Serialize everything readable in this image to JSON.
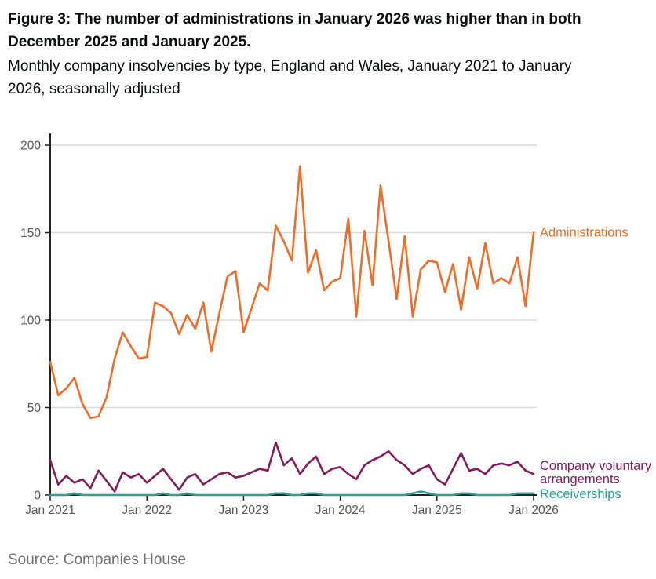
{
  "header": {
    "title_line1": "Figure 3: The number of administrations in January 2026 was higher than in both",
    "title_line2": "December 2025 and January 2025.",
    "subtitle_line1": "Monthly company insolvencies by type, England and Wales, January 2021 to January",
    "subtitle_line2": "2026, seasonally adjusted"
  },
  "footer": {
    "source": "Source: Companies House"
  },
  "chart_data": {
    "type": "line",
    "title": "Monthly company insolvencies by type, England and Wales, January 2021 to January 2026, seasonally adjusted",
    "x_start": "Jan 2021",
    "x_end": "Jan 2026",
    "x_tick_labels": [
      "Jan 2021",
      "Jan 2022",
      "Jan 2023",
      "Jan 2024",
      "Jan 2025",
      "Jan 2026"
    ],
    "x_tick_month_index": [
      0,
      12,
      24,
      36,
      48,
      60
    ],
    "y_ticks": [
      0,
      50,
      100,
      150,
      200
    ],
    "ylim": [
      0,
      204
    ],
    "grid": "horizontal",
    "legend_position": "right-of-line-end",
    "axis_color": "#222222",
    "grid_color": "#d9d9d9",
    "tick_label_color": "#575756",
    "series": [
      {
        "name": "Administrations",
        "label_lines": [
          "Administrations"
        ],
        "color": "#f46a25",
        "values": [
          76,
          57,
          61,
          67,
          52,
          44,
          45,
          56,
          78,
          93,
          85,
          78,
          79,
          110,
          108,
          104,
          92,
          103,
          95,
          110,
          82,
          104,
          125,
          128,
          93,
          107,
          121,
          117,
          154,
          145,
          134,
          188,
          127,
          140,
          117,
          122,
          124,
          158,
          102,
          151,
          120,
          177,
          145,
          112,
          148,
          102,
          129,
          134,
          133,
          116,
          132,
          106,
          136,
          118,
          144,
          121,
          124,
          121,
          136,
          108,
          150
        ]
      },
      {
        "name": "Company voluntary arrangements",
        "label_lines": [
          "Company voluntary",
          "arrangements"
        ],
        "color": "#871a5b",
        "values": [
          20,
          6,
          11,
          7,
          9,
          4,
          14,
          8,
          2,
          13,
          10,
          12,
          7,
          11,
          15,
          9,
          3,
          10,
          12,
          6,
          9,
          12,
          13,
          10,
          11,
          13,
          15,
          14,
          30,
          17,
          21,
          12,
          18,
          22,
          12,
          15,
          16,
          12,
          9,
          17,
          20,
          22,
          25,
          20,
          17,
          12,
          15,
          17,
          9,
          6,
          15,
          24,
          14,
          15,
          12,
          17,
          18,
          17,
          19,
          14,
          12
        ]
      },
      {
        "name": "Receiverships",
        "label_lines": [
          "Receiverships"
        ],
        "color": "#28a197",
        "values": [
          0,
          0,
          0,
          1,
          0,
          0,
          0,
          0,
          0,
          0,
          0,
          0,
          0,
          0,
          1,
          0,
          0,
          1,
          0,
          0,
          0,
          0,
          0,
          0,
          0,
          0,
          0,
          0,
          1,
          1,
          0,
          0,
          1,
          1,
          0,
          0,
          0,
          0,
          0,
          0,
          0,
          0,
          0,
          0,
          0,
          1,
          2,
          1,
          0,
          0,
          0,
          1,
          1,
          0,
          0,
          0,
          0,
          0,
          1,
          1,
          1
        ]
      }
    ]
  }
}
